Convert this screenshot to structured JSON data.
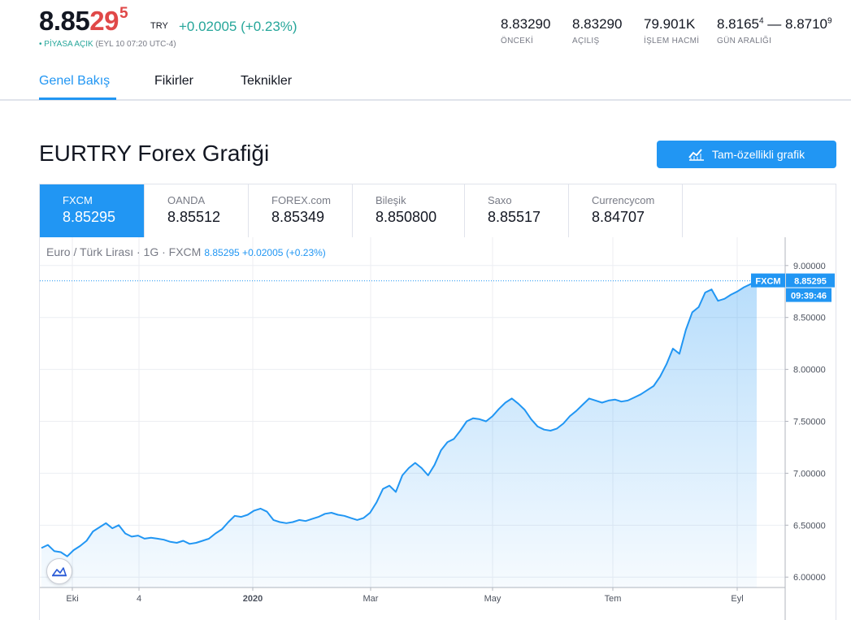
{
  "quote": {
    "price_main": "8.85",
    "price_hi": "29",
    "price_sup": "5",
    "currency": "TRY",
    "change": "+0.02005 (+0.23%)",
    "market_dot": "•",
    "market_status": "PİYASA AÇIK",
    "market_time": "(EYL 10 07:20 UTC-4)"
  },
  "stats": [
    {
      "value": "8.83290",
      "label": "ÖNCEKİ"
    },
    {
      "value": "8.83290",
      "label": "AÇILIŞ"
    },
    {
      "value": "79.901K",
      "label": "İŞLEM HACMİ"
    },
    {
      "value_low": "8.8165",
      "sup_low": "4",
      "dash": " — ",
      "value_high": "8.8710",
      "sup_high": "9",
      "label": "GÜN ARALIĞI"
    }
  ],
  "tabs": [
    "Genel Bakış",
    "Fikirler",
    "Teknikler"
  ],
  "section_title": "EURTRY Forex Grafiği",
  "full_chart_button": "Tam-özellikli grafik",
  "sources": [
    {
      "name": "FXCM",
      "value": "8.85295"
    },
    {
      "name": "OANDA",
      "value": "8.85512"
    },
    {
      "name": "FOREX.com",
      "value": "8.85349"
    },
    {
      "name": "Bileşik",
      "value": "8.850800"
    },
    {
      "name": "Saxo",
      "value": "8.85517"
    },
    {
      "name": "Currencycom",
      "value": "8.84707"
    }
  ],
  "legend": {
    "symbol": "Euro / Türk Lirası · 1G · FXCM",
    "quote": "8.85295 +0.02005 (+0.23%)"
  },
  "colors": {
    "accent": "#2196f3",
    "up": "#26a69a",
    "down": "#e04848"
  },
  "chart_data": {
    "type": "area",
    "series_name": "FXCM",
    "last_price_label": "8.85295",
    "countdown_label": "09:39:46",
    "ylim": [
      5.9,
      9.1
    ],
    "y_ticks": [
      "9.00000",
      "8.50000",
      "8.00000",
      "7.50000",
      "7.00000",
      "6.50000",
      "6.00000"
    ],
    "y_tick_values": [
      9.0,
      8.5,
      8.0,
      7.5,
      7.0,
      6.5,
      6.0
    ],
    "x_ticks": [
      "Eki",
      "4",
      "2020",
      "Mar",
      "May",
      "Tem",
      "Eyl"
    ],
    "grid": true,
    "points": [
      [
        0,
        6.28
      ],
      [
        3,
        6.31
      ],
      [
        6,
        6.25
      ],
      [
        9,
        6.24
      ],
      [
        12,
        6.2
      ],
      [
        15,
        6.26
      ],
      [
        18,
        6.3
      ],
      [
        21,
        6.35
      ],
      [
        24,
        6.44
      ],
      [
        27,
        6.48
      ],
      [
        30,
        6.52
      ],
      [
        33,
        6.47
      ],
      [
        36,
        6.5
      ],
      [
        39,
        6.42
      ],
      [
        42,
        6.39
      ],
      [
        45,
        6.4
      ],
      [
        48,
        6.37
      ],
      [
        51,
        6.38
      ],
      [
        54,
        6.37
      ],
      [
        57,
        6.36
      ],
      [
        60,
        6.34
      ],
      [
        63,
        6.33
      ],
      [
        66,
        6.35
      ],
      [
        69,
        6.32
      ],
      [
        72,
        6.33
      ],
      [
        75,
        6.35
      ],
      [
        78,
        6.37
      ],
      [
        81,
        6.42
      ],
      [
        84,
        6.46
      ],
      [
        87,
        6.53
      ],
      [
        90,
        6.59
      ],
      [
        93,
        6.58
      ],
      [
        96,
        6.6
      ],
      [
        99,
        6.64
      ],
      [
        102,
        6.66
      ],
      [
        105,
        6.63
      ],
      [
        108,
        6.55
      ],
      [
        111,
        6.53
      ],
      [
        114,
        6.52
      ],
      [
        117,
        6.53
      ],
      [
        120,
        6.55
      ],
      [
        123,
        6.54
      ],
      [
        126,
        6.56
      ],
      [
        129,
        6.58
      ],
      [
        132,
        6.61
      ],
      [
        135,
        6.62
      ],
      [
        138,
        6.6
      ],
      [
        141,
        6.59
      ],
      [
        144,
        6.57
      ],
      [
        147,
        6.55
      ],
      [
        150,
        6.57
      ],
      [
        153,
        6.62
      ],
      [
        156,
        6.72
      ],
      [
        159,
        6.85
      ],
      [
        162,
        6.88
      ],
      [
        165,
        6.82
      ],
      [
        168,
        6.98
      ],
      [
        171,
        7.05
      ],
      [
        174,
        7.1
      ],
      [
        177,
        7.05
      ],
      [
        180,
        6.98
      ],
      [
        183,
        7.08
      ],
      [
        186,
        7.22
      ],
      [
        189,
        7.3
      ],
      [
        192,
        7.33
      ],
      [
        195,
        7.41
      ],
      [
        198,
        7.5
      ],
      [
        201,
        7.53
      ],
      [
        204,
        7.52
      ],
      [
        207,
        7.5
      ],
      [
        210,
        7.55
      ],
      [
        213,
        7.62
      ],
      [
        216,
        7.68
      ],
      [
        219,
        7.72
      ],
      [
        222,
        7.67
      ],
      [
        225,
        7.61
      ],
      [
        228,
        7.52
      ],
      [
        231,
        7.45
      ],
      [
        234,
        7.42
      ],
      [
        237,
        7.41
      ],
      [
        240,
        7.43
      ],
      [
        243,
        7.48
      ],
      [
        246,
        7.55
      ],
      [
        249,
        7.6
      ],
      [
        252,
        7.66
      ],
      [
        255,
        7.72
      ],
      [
        258,
        7.7
      ],
      [
        261,
        7.68
      ],
      [
        264,
        7.7
      ],
      [
        267,
        7.71
      ],
      [
        270,
        7.69
      ],
      [
        273,
        7.7
      ],
      [
        276,
        7.73
      ],
      [
        279,
        7.76
      ],
      [
        282,
        7.8
      ],
      [
        285,
        7.84
      ],
      [
        288,
        7.93
      ],
      [
        291,
        8.05
      ],
      [
        294,
        8.2
      ],
      [
        297,
        8.15
      ],
      [
        300,
        8.38
      ],
      [
        303,
        8.55
      ],
      [
        306,
        8.6
      ],
      [
        309,
        8.74
      ],
      [
        312,
        8.77
      ],
      [
        315,
        8.66
      ],
      [
        318,
        8.68
      ],
      [
        321,
        8.72
      ],
      [
        324,
        8.75
      ],
      [
        327,
        8.79
      ],
      [
        330,
        8.82
      ],
      [
        333,
        8.85
      ]
    ]
  }
}
